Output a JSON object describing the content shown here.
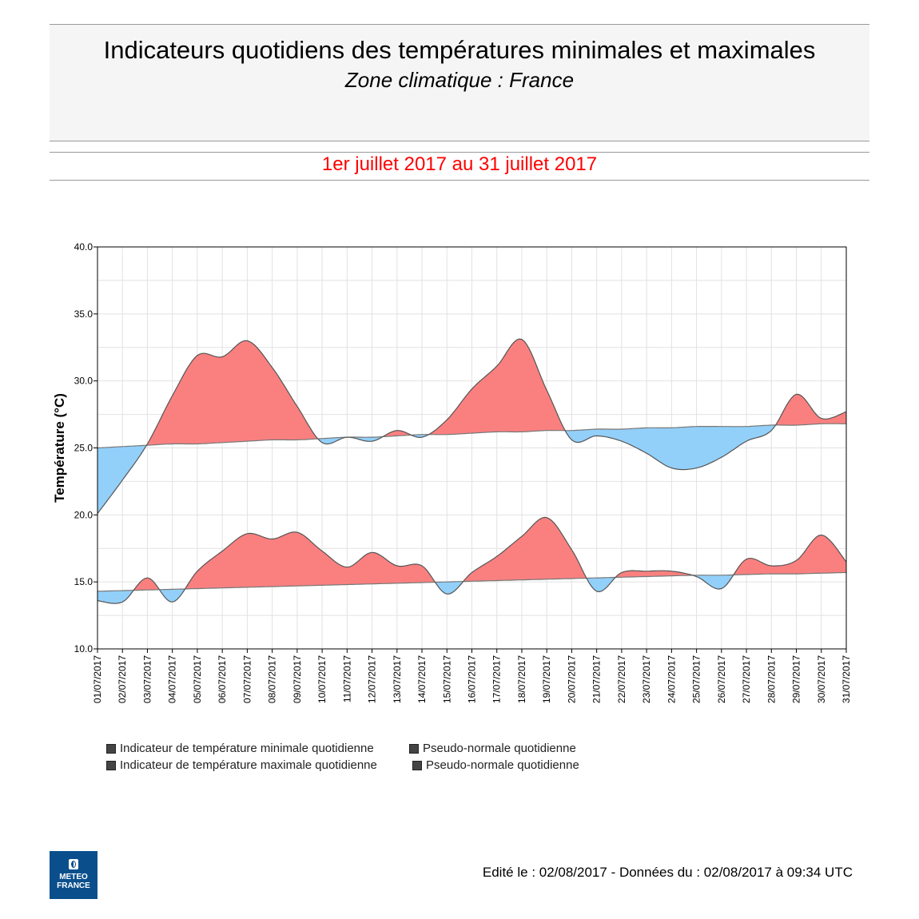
{
  "header": {
    "title": "Indicateurs quotidiens des températures minimales et maximales",
    "subtitle": "Zone climatique : France",
    "period": "1er juillet 2017 au 31 juillet 2017"
  },
  "footer": {
    "text": "Edité le : 02/08/2017 - Données du : 02/08/2017 à 09:34 UTC",
    "logo_text": [
      "METEO",
      "FRANCE"
    ]
  },
  "chart_data": {
    "type": "area",
    "ylabel": "Température (°C)",
    "xlabel": "",
    "ylim": [
      10,
      40
    ],
    "yticks": [
      "10.0",
      "15.0",
      "20.0",
      "25.0",
      "30.0",
      "35.0",
      "40.0"
    ],
    "grid": true,
    "colors": {
      "above": "#fa8080",
      "below": "#92d0fa",
      "line": "#555555"
    },
    "x": [
      "01/07/2017",
      "02/07/2017",
      "03/07/2017",
      "04/07/2017",
      "05/07/2017",
      "06/07/2017",
      "07/07/2017",
      "08/07/2017",
      "09/07/2017",
      "10/07/2017",
      "11/07/2017",
      "12/07/2017",
      "13/07/2017",
      "14/07/2017",
      "15/07/2017",
      "16/07/2017",
      "17/07/2017",
      "18/07/2017",
      "19/07/2017",
      "20/07/2017",
      "21/07/2017",
      "22/07/2017",
      "23/07/2017",
      "24/07/2017",
      "25/07/2017",
      "26/07/2017",
      "27/07/2017",
      "28/07/2017",
      "29/07/2017",
      "30/07/2017",
      "31/07/2017"
    ],
    "series": [
      {
        "name": "Indicateur de température maximale quotidienne",
        "values": [
          20.1,
          22.6,
          25.3,
          28.9,
          31.9,
          31.8,
          33.0,
          31.0,
          28.1,
          25.4,
          25.8,
          25.5,
          26.3,
          25.8,
          27.1,
          29.4,
          31.1,
          33.1,
          29.3,
          25.6,
          25.9,
          25.5,
          24.6,
          23.5,
          23.5,
          24.3,
          25.5,
          26.3,
          29.0,
          27.2,
          27.7
        ]
      },
      {
        "name": "Pseudo-normale quotidienne",
        "role": "normal-max",
        "values": [
          25.0,
          25.1,
          25.2,
          25.3,
          25.3,
          25.4,
          25.5,
          25.6,
          25.6,
          25.7,
          25.8,
          25.8,
          25.9,
          26.0,
          26.0,
          26.1,
          26.2,
          26.2,
          26.3,
          26.3,
          26.4,
          26.4,
          26.5,
          26.5,
          26.6,
          26.6,
          26.6,
          26.7,
          26.7,
          26.8,
          26.8
        ]
      },
      {
        "name": "Indicateur de température minimale quotidienne",
        "values": [
          13.6,
          13.5,
          15.3,
          13.5,
          15.8,
          17.3,
          18.6,
          18.2,
          18.7,
          17.3,
          16.1,
          17.2,
          16.2,
          16.2,
          14.1,
          15.7,
          16.9,
          18.4,
          19.8,
          17.4,
          14.3,
          15.7,
          15.8,
          15.8,
          15.4,
          14.5,
          16.7,
          16.2,
          16.6,
          18.5,
          16.5
        ]
      },
      {
        "name": "Pseudo-normale quotidienne",
        "role": "normal-min",
        "values": [
          14.3,
          14.35,
          14.4,
          14.45,
          14.5,
          14.55,
          14.6,
          14.65,
          14.7,
          14.75,
          14.8,
          14.85,
          14.9,
          14.95,
          15.0,
          15.05,
          15.1,
          15.15,
          15.2,
          15.25,
          15.3,
          15.35,
          15.4,
          15.45,
          15.5,
          15.5,
          15.55,
          15.6,
          15.6,
          15.65,
          15.7
        ]
      }
    ],
    "legend": [
      "Indicateur de température minimale quotidienne",
      "Pseudo-normale quotidienne",
      "Indicateur de température maximale quotidienne",
      "Pseudo-normale quotidienne"
    ],
    "legend_position": "bottom"
  }
}
